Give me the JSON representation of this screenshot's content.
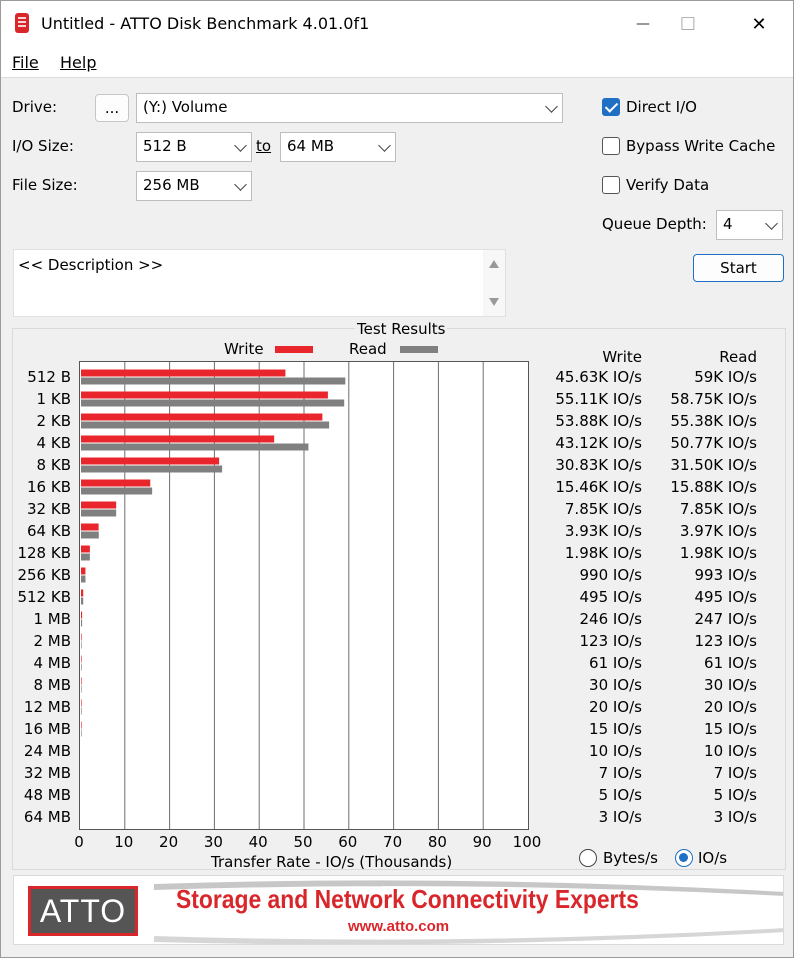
{
  "window": {
    "title": "Untitled - ATTO Disk Benchmark 4.01.0f1",
    "minimize_glyph": "—",
    "maximize_glyph": "☐",
    "close_glyph": "✕"
  },
  "menu": {
    "file": "File",
    "help": "Help"
  },
  "form": {
    "drive_label": "Drive:",
    "browse_button": "...",
    "drive_value": "(Y:) Volume",
    "io_size_label": "I/O Size:",
    "io_from": "512 B",
    "to_label": "to",
    "io_to": "64 MB",
    "file_size_label": "File Size:",
    "file_size": "256 MB",
    "direct_io": "Direct I/O",
    "bypass_cache": "Bypass Write Cache",
    "verify_data": "Verify Data",
    "queue_depth_label": "Queue Depth:",
    "queue_depth": "4",
    "start_button": "Start",
    "description": "<< Description >>"
  },
  "checkbox_state": {
    "direct_io": true,
    "bypass_cache": false,
    "verify_data": false
  },
  "results": {
    "group_title": "Test Results",
    "legend_write": "Write",
    "legend_read": "Read",
    "col_write": "Write",
    "col_read": "Read",
    "xlabel": "Transfer Rate - IO/s (Thousands)",
    "radio_bytes": "Bytes/s",
    "radio_ios": "IO/s",
    "rows": [
      {
        "size": "512 B",
        "write": "45.63K IO/s",
        "read": "59K IO/s"
      },
      {
        "size": "1 KB",
        "write": "55.11K IO/s",
        "read": "58.75K IO/s"
      },
      {
        "size": "2 KB",
        "write": "53.88K IO/s",
        "read": "55.38K IO/s"
      },
      {
        "size": "4 KB",
        "write": "43.12K IO/s",
        "read": "50.77K IO/s"
      },
      {
        "size": "8 KB",
        "write": "30.83K IO/s",
        "read": "31.50K IO/s"
      },
      {
        "size": "16 KB",
        "write": "15.46K IO/s",
        "read": "15.88K IO/s"
      },
      {
        "size": "32 KB",
        "write": "7.85K IO/s",
        "read": "7.85K IO/s"
      },
      {
        "size": "64 KB",
        "write": "3.93K IO/s",
        "read": "3.97K IO/s"
      },
      {
        "size": "128 KB",
        "write": "1.98K IO/s",
        "read": "1.98K IO/s"
      },
      {
        "size": "256 KB",
        "write": "990 IO/s",
        "read": "993 IO/s"
      },
      {
        "size": "512 KB",
        "write": "495 IO/s",
        "read": "495 IO/s"
      },
      {
        "size": "1 MB",
        "write": "246 IO/s",
        "read": "247 IO/s"
      },
      {
        "size": "2 MB",
        "write": "123 IO/s",
        "read": "123 IO/s"
      },
      {
        "size": "4 MB",
        "write": "61 IO/s",
        "read": "61 IO/s"
      },
      {
        "size": "8 MB",
        "write": "30 IO/s",
        "read": "30 IO/s"
      },
      {
        "size": "12 MB",
        "write": "20 IO/s",
        "read": "20 IO/s"
      },
      {
        "size": "16 MB",
        "write": "15 IO/s",
        "read": "15 IO/s"
      },
      {
        "size": "24 MB",
        "write": "10 IO/s",
        "read": "10 IO/s"
      },
      {
        "size": "32 MB",
        "write": "7 IO/s",
        "read": "7 IO/s"
      },
      {
        "size": "48 MB",
        "write": "5 IO/s",
        "read": "5 IO/s"
      },
      {
        "size": "64 MB",
        "write": "3 IO/s",
        "read": "3 IO/s"
      }
    ]
  },
  "chart_data": {
    "type": "bar",
    "orientation": "horizontal",
    "categories": [
      "512 B",
      "1 KB",
      "2 KB",
      "4 KB",
      "8 KB",
      "16 KB",
      "32 KB",
      "64 KB",
      "128 KB",
      "256 KB",
      "512 KB",
      "1 MB",
      "2 MB",
      "4 MB",
      "8 MB",
      "12 MB",
      "16 MB",
      "24 MB",
      "32 MB",
      "48 MB",
      "64 MB"
    ],
    "series": [
      {
        "name": "Write",
        "color": "#e8262b",
        "values": [
          45.63,
          55.11,
          53.88,
          43.12,
          30.83,
          15.46,
          7.85,
          3.93,
          1.98,
          0.99,
          0.495,
          0.246,
          0.123,
          0.061,
          0.03,
          0.02,
          0.015,
          0.01,
          0.007,
          0.005,
          0.003
        ]
      },
      {
        "name": "Read",
        "color": "#808080",
        "values": [
          59,
          58.75,
          55.38,
          50.77,
          31.5,
          15.88,
          7.85,
          3.97,
          1.98,
          0.993,
          0.495,
          0.247,
          0.123,
          0.061,
          0.03,
          0.02,
          0.015,
          0.01,
          0.007,
          0.005,
          0.003
        ]
      }
    ],
    "xlim": [
      0,
      100
    ],
    "xticks": [
      0,
      10,
      20,
      30,
      40,
      50,
      60,
      70,
      80,
      90,
      100
    ],
    "xlabel": "Transfer Rate - IO/s (Thousands)",
    "grid": "vertical",
    "legend": "top"
  },
  "banner": {
    "logo": "ATTO",
    "tagline": "Storage and Network Connectivity Experts",
    "url": "www.atto.com"
  }
}
